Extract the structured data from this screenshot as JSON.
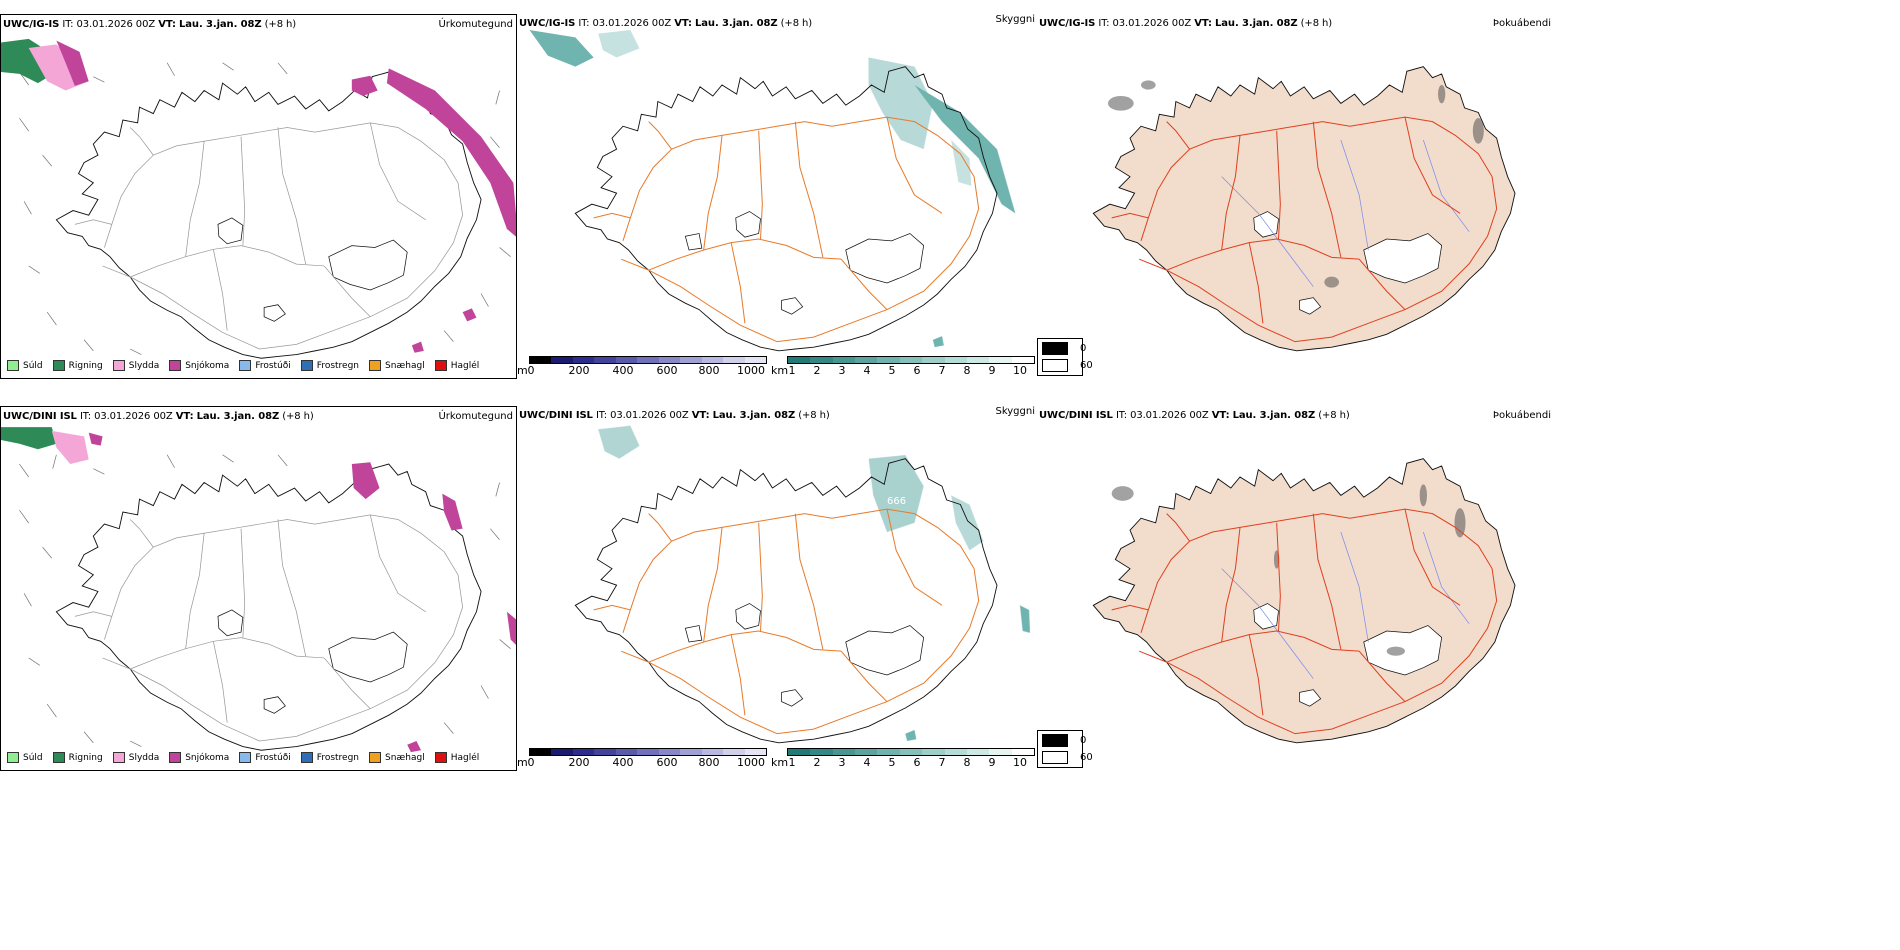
{
  "rows": [
    {
      "model": "UWC/IG-IS",
      "it_label": "IT:",
      "it_value": "03.01.2026 00Z",
      "vt_label": "VT:",
      "vt_value": "Lau. 3.jan. 08Z",
      "lead": "(+8 h)",
      "panel_titles": [
        "Úrkomutegund",
        "Skyggni",
        "Þokuábendi"
      ],
      "visibility_value": ""
    },
    {
      "model": "UWC/DINI ISL",
      "it_label": "IT:",
      "it_value": "03.01.2026 00Z",
      "vt_label": "VT:",
      "vt_value": "Lau. 3.jan. 08Z",
      "lead": "(+8 h)",
      "panel_titles": [
        "Úrkomutegund",
        "Skyggni",
        "Þokuábendi"
      ],
      "visibility_value": "666"
    }
  ],
  "precip_legend": [
    {
      "label": "Súld",
      "color": "#90ee90"
    },
    {
      "label": "Rigning",
      "color": "#2e8b57"
    },
    {
      "label": "Slydda",
      "color": "#f4a6d7"
    },
    {
      "label": "Snjókoma",
      "color": "#c0449a"
    },
    {
      "label": "Frostúði",
      "color": "#87b9ec"
    },
    {
      "label": "Frostregn",
      "color": "#2f6fb5"
    },
    {
      "label": "Snæhagl",
      "color": "#f0a020"
    },
    {
      "label": "Haglél",
      "color": "#e01010"
    }
  ],
  "height_bar": {
    "unit": "m",
    "ticks": [
      "0",
      "200",
      "400",
      "600",
      "800",
      "1000"
    ],
    "colors": [
      "#000000",
      "#1a1a70",
      "#2c2c8c",
      "#43439e",
      "#5a5aad",
      "#7070bb",
      "#8888c8",
      "#a0a0d4",
      "#b8b8e0",
      "#d0d0ea",
      "#e4e4f4"
    ]
  },
  "visibility_bar": {
    "unit": "km",
    "ticks": [
      "1",
      "2",
      "3",
      "4",
      "5",
      "6",
      "7",
      "8",
      "9",
      "10"
    ],
    "colors": [
      "#1f7a78",
      "#338885",
      "#479692",
      "#5ba49f",
      "#70b2ad",
      "#86c0ba",
      "#9dcec8",
      "#b5dcd6",
      "#cde9e4",
      "#e6f4f2",
      "#ffffff"
    ]
  },
  "fog_legend": [
    {
      "label": "0",
      "color": "#000000"
    },
    {
      "label": "60",
      "color": "#ffffff"
    }
  ],
  "colors": {
    "road": "#e87a2a",
    "coast": "#111111",
    "land_fog": "#f2dccb",
    "wind": "#555555",
    "fog_red_road": "#e04020",
    "river": "#7a8cf0"
  }
}
